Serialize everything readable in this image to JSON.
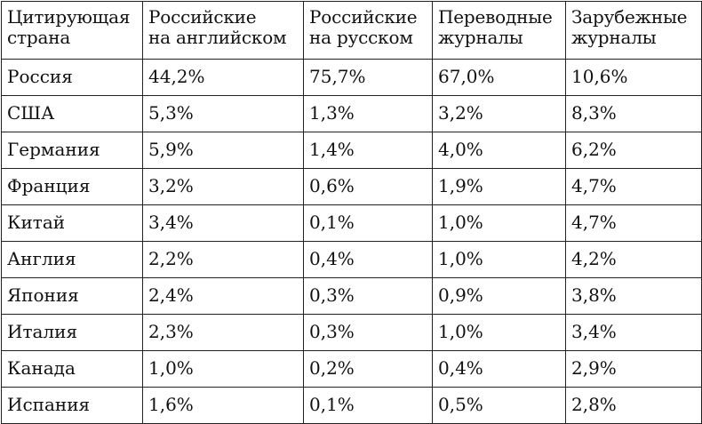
{
  "table": {
    "headers": [
      [
        "Цитирующая",
        "страна"
      ],
      [
        "Российские",
        "на английском"
      ],
      [
        "Российские",
        "на русском"
      ],
      [
        "Переводные",
        "журналы"
      ],
      [
        "Зарубежные",
        "журналы"
      ]
    ],
    "rows": [
      [
        "Россия",
        "44,2%",
        "75,7%",
        "67,0%",
        "10,6%"
      ],
      [
        "США",
        "5,3%",
        "1,3%",
        "3,2%",
        "8,3%"
      ],
      [
        "Германия",
        "5,9%",
        "1,4%",
        "4,0%",
        "6,2%"
      ],
      [
        "Франция",
        "3,2%",
        "0,6%",
        "1,9%",
        "4,7%"
      ],
      [
        "Китай",
        "3,4%",
        "0,1%",
        "1,0%",
        "4,7%"
      ],
      [
        "Англия",
        "2,2%",
        "0,4%",
        "1,0%",
        "4,2%"
      ],
      [
        "Япония",
        "2,4%",
        "0,3%",
        "0,9%",
        "3,8%"
      ],
      [
        "Италия",
        "2,3%",
        "0,3%",
        "1,0%",
        "3,4%"
      ],
      [
        "Канада",
        "1,0%",
        "0,2%",
        "0,4%",
        "2,9%"
      ],
      [
        "Испания",
        "1,6%",
        "0,1%",
        "0,5%",
        "2,8%"
      ]
    ]
  }
}
